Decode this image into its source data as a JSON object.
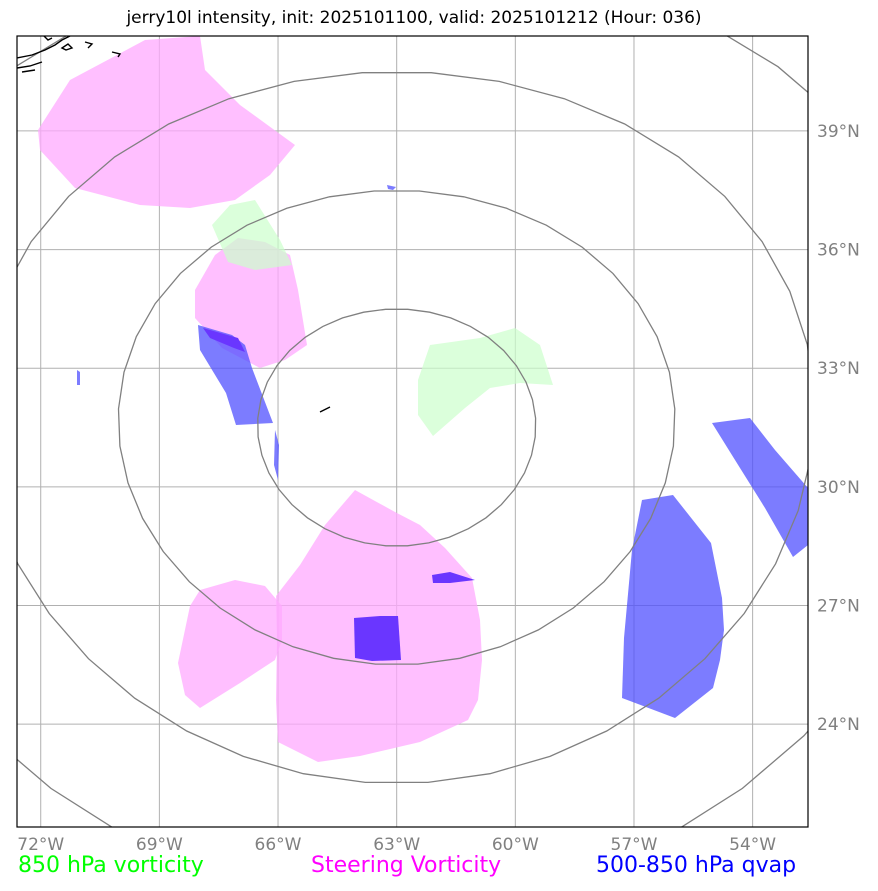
{
  "title": "jerry10l intensity, init: 2025101100, valid: 2025101212 (Hour: 036)",
  "map": {
    "lon_range": [
      -72.6,
      -52.6
    ],
    "lat_range": [
      21.4,
      41.4
    ],
    "lon_ticks": [
      {
        "value": -72,
        "label": "72°W"
      },
      {
        "value": -69,
        "label": "69°W"
      },
      {
        "value": -66,
        "label": "66°W"
      },
      {
        "value": -63,
        "label": "63°W"
      },
      {
        "value": -60,
        "label": "60°W"
      },
      {
        "value": -57,
        "label": "57°W"
      },
      {
        "value": -54,
        "label": "54°W"
      }
    ],
    "lat_ticks": [
      {
        "value": 24,
        "label": "24°N"
      },
      {
        "value": 27,
        "label": "27°N"
      },
      {
        "value": 30,
        "label": "30°N"
      },
      {
        "value": 33,
        "label": "33°N"
      },
      {
        "value": 36,
        "label": "36°N"
      },
      {
        "value": 39,
        "label": "39°N"
      }
    ],
    "grid": true,
    "range_rings": {
      "center": [
        -63.0,
        31.5
      ],
      "radii_deg": [
        3,
        6,
        9,
        12
      ]
    },
    "colors": {
      "vort850": "#ccffcc",
      "steering": "#ffaaff",
      "qvap": "#5050ff",
      "overlap": "#6a36ff",
      "rings": "#808080",
      "grid": "#b0b0b0"
    }
  },
  "legend": {
    "vort850": "850 hPa vorticity",
    "steering": "Steering Vorticity",
    "qvap": "500-850 hPa qvap"
  }
}
